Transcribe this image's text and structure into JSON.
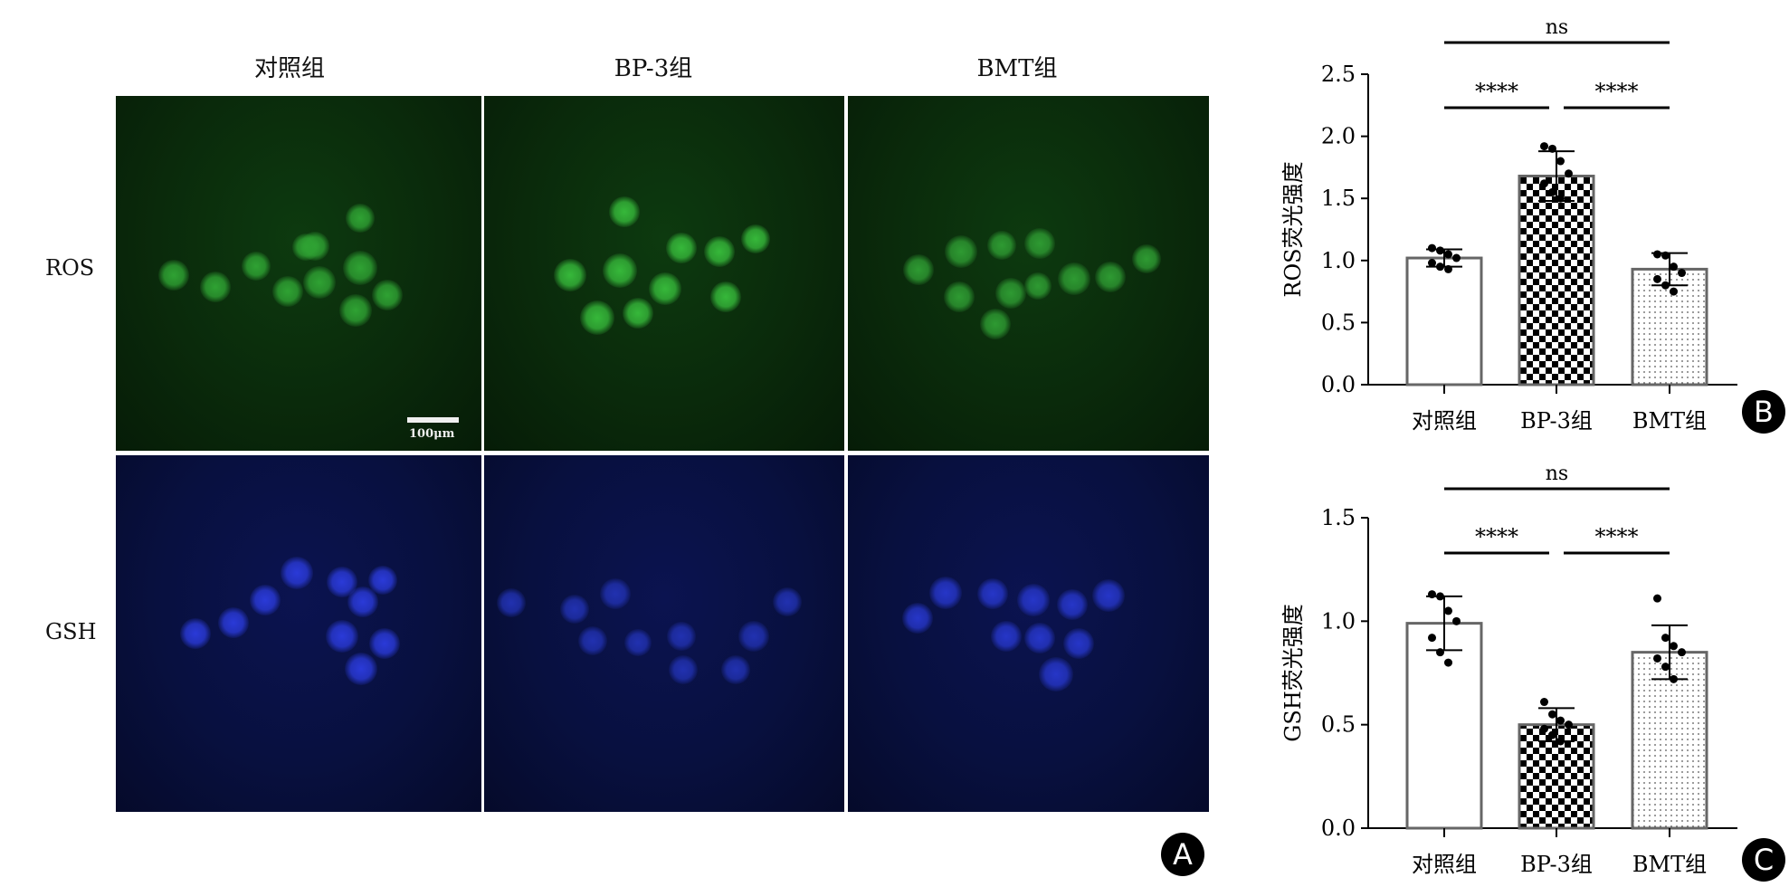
{
  "figure": {
    "columns": [
      "对照组",
      "BP-3组",
      "BMT组"
    ],
    "rows": [
      "ROS",
      "GSH"
    ],
    "scale_bar": "100μm",
    "panel_letters": [
      "A",
      "B",
      "C"
    ]
  },
  "chart_data": [
    {
      "type": "bar",
      "panel": "B",
      "categories": [
        "对照组",
        "BP-3组",
        "BMT组"
      ],
      "values": [
        1.02,
        1.68,
        0.93
      ],
      "errors": [
        0.07,
        0.2,
        0.13
      ],
      "points": [
        [
          1.1,
          1.08,
          1.05,
          1.02,
          0.98,
          0.95,
          0.93
        ],
        [
          1.92,
          1.9,
          1.8,
          1.7,
          1.62,
          1.55,
          1.5
        ],
        [
          1.05,
          1.04,
          0.95,
          0.9,
          0.85,
          0.8,
          0.75
        ]
      ],
      "patterns": [
        "plain",
        "checker",
        "dots"
      ],
      "ylabel": "ROS荧光强度",
      "ylim": [
        0,
        2.5
      ],
      "yticks": [
        "0.0",
        "0.5",
        "1.0",
        "1.5",
        "2.0",
        "2.5"
      ],
      "significance": [
        {
          "from": 0,
          "to": 1,
          "label": "****"
        },
        {
          "from": 1,
          "to": 2,
          "label": "****"
        },
        {
          "from": 0,
          "to": 2,
          "label": "ns"
        }
      ]
    },
    {
      "type": "bar",
      "panel": "C",
      "categories": [
        "对照组",
        "BP-3组",
        "BMT组"
      ],
      "values": [
        0.99,
        0.5,
        0.85
      ],
      "errors": [
        0.13,
        0.08,
        0.13
      ],
      "points": [
        [
          1.13,
          1.12,
          1.05,
          1.0,
          0.92,
          0.85,
          0.8
        ],
        [
          0.61,
          0.55,
          0.52,
          0.5,
          0.48,
          0.45,
          0.42
        ],
        [
          1.11,
          0.92,
          0.88,
          0.85,
          0.82,
          0.78,
          0.72
        ]
      ],
      "patterns": [
        "plain",
        "checker",
        "dots"
      ],
      "ylabel": "GSH荧光强度",
      "ylim": [
        0,
        1.5
      ],
      "yticks": [
        "0.0",
        "0.5",
        "1.0",
        "1.5"
      ],
      "significance": [
        {
          "from": 0,
          "to": 1,
          "label": "****"
        },
        {
          "from": 1,
          "to": 2,
          "label": "****"
        },
        {
          "from": 0,
          "to": 2,
          "label": "ns"
        }
      ]
    }
  ]
}
